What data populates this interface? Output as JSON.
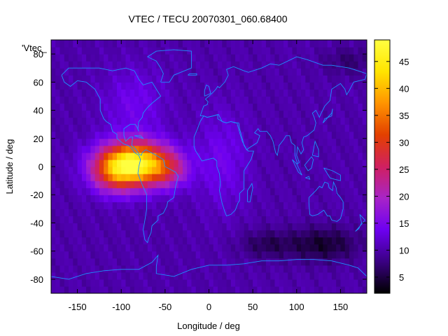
{
  "chart_data": {
    "type": "heatmap",
    "title": "VTEC / TECU 20070301_060.68400",
    "xlabel": "Longitude / deg",
    "ylabel": "Latitude / deg",
    "xlim": [
      -180,
      180
    ],
    "ylim": [
      -90,
      90
    ],
    "xticks": [
      -150,
      -100,
      -50,
      0,
      50,
      100,
      150
    ],
    "yticks": [
      -80,
      -60,
      -40,
      -20,
      0,
      20,
      40,
      60,
      80
    ],
    "xtick_labels": [
      "-150",
      "-100",
      "-50",
      "0",
      "50",
      "100",
      "150"
    ],
    "ytick_labels": [
      "-80",
      "-60",
      "-40",
      "-20",
      "0",
      "20",
      "40",
      "60",
      "80"
    ],
    "grid_deg": 5,
    "background_vtec": 10,
    "anomalies": [
      {
        "lon": -85,
        "lat": 2,
        "sigma_lon": 38,
        "sigma_lat": 15,
        "amp": 38
      },
      {
        "lon": -110,
        "lat": -5,
        "sigma_lon": 25,
        "sigma_lat": 14,
        "amp": 10
      },
      {
        "lon": -45,
        "lat": -2,
        "sigma_lon": 22,
        "sigma_lat": 12,
        "amp": 8
      },
      {
        "lon": -85,
        "lat": 45,
        "sigma_lon": 35,
        "sigma_lat": 25,
        "amp": 4
      },
      {
        "lon": 15,
        "lat": 5,
        "sigma_lon": 30,
        "sigma_lat": 35,
        "amp": 4
      },
      {
        "lon": 130,
        "lat": -55,
        "sigma_lon": 40,
        "sigma_lat": 12,
        "amp": -6
      },
      {
        "lon": 65,
        "lat": -55,
        "sigma_lon": 30,
        "sigma_lat": 10,
        "amp": -4
      },
      {
        "lon": 160,
        "lat": 75,
        "sigma_lon": 30,
        "sigma_lat": 10,
        "amp": -3
      }
    ],
    "colorbar": {
      "min": 2,
      "max": 49,
      "ticks": [
        5,
        10,
        15,
        20,
        25,
        30,
        35,
        40,
        45
      ],
      "tick_labels": [
        "5",
        "10",
        "15",
        "20",
        "25",
        "30",
        "35",
        "40",
        "45"
      ]
    },
    "legend_text": "'Vtec_",
    "coastline_color": "#1e90ff",
    "colormap": [
      "#000000",
      "#3a0082",
      "#6d00f0",
      "#a824c8",
      "#d02060",
      "#e34000",
      "#ff9400",
      "#ffe400",
      "#ffff40"
    ],
    "coastlines": [
      [
        [
          -168,
          65
        ],
        [
          -160,
          70
        ],
        [
          -140,
          70
        ],
        [
          -125,
          70
        ],
        [
          -110,
          68
        ],
        [
          -95,
          70
        ],
        [
          -85,
          68
        ],
        [
          -80,
          62
        ],
        [
          -75,
          58
        ],
        [
          -65,
          60
        ],
        [
          -60,
          55
        ],
        [
          -55,
          50
        ],
        [
          -65,
          45
        ],
        [
          -70,
          42
        ],
        [
          -75,
          38
        ],
        [
          -76,
          35
        ],
        [
          -80,
          32
        ],
        [
          -81,
          27
        ],
        [
          -80,
          25
        ],
        [
          -82,
          28
        ],
        [
          -84,
          30
        ],
        [
          -90,
          30
        ],
        [
          -97,
          27
        ],
        [
          -97,
          22
        ],
        [
          -95,
          18
        ],
        [
          -90,
          21
        ],
        [
          -87,
          21
        ],
        [
          -88,
          15
        ],
        [
          -83,
          12
        ],
        [
          -80,
          9
        ],
        [
          -77,
          8
        ],
        [
          -76,
          10
        ],
        [
          -72,
          12
        ],
        [
          -66,
          10
        ],
        [
          -60,
          8
        ],
        [
          -52,
          5
        ],
        [
          -50,
          0
        ],
        [
          -44,
          -2
        ],
        [
          -38,
          -4
        ],
        [
          -35,
          -7
        ],
        [
          -38,
          -14
        ],
        [
          -40,
          -22
        ],
        [
          -47,
          -25
        ],
        [
          -48,
          -28
        ],
        [
          -52,
          -33
        ],
        [
          -58,
          -35
        ],
        [
          -58,
          -38
        ],
        [
          -65,
          -42
        ],
        [
          -66,
          -47
        ],
        [
          -69,
          -51
        ],
        [
          -70,
          -54
        ],
        [
          -73,
          -52
        ],
        [
          -75,
          -45
        ],
        [
          -73,
          -38
        ],
        [
          -71,
          -30
        ],
        [
          -71,
          -20
        ],
        [
          -76,
          -13
        ],
        [
          -81,
          -5
        ],
        [
          -80,
          0
        ],
        [
          -78,
          5
        ],
        [
          -80,
          8
        ],
        [
          -85,
          10
        ],
        [
          -88,
          13
        ],
        [
          -92,
          15
        ],
        [
          -97,
          16
        ],
        [
          -105,
          20
        ],
        [
          -105,
          23
        ],
        [
          -110,
          25
        ],
        [
          -112,
          30
        ],
        [
          -117,
          32
        ],
        [
          -120,
          34
        ],
        [
          -124,
          40
        ],
        [
          -124,
          48
        ],
        [
          -130,
          55
        ],
        [
          -140,
          60
        ],
        [
          -150,
          61
        ],
        [
          -158,
          57
        ],
        [
          -165,
          60
        ],
        [
          -168,
          65
        ]
      ],
      [
        [
          -55,
          60
        ],
        [
          -45,
          60
        ],
        [
          -40,
          65
        ],
        [
          -20,
          70
        ],
        [
          -20,
          76
        ],
        [
          -20,
          82
        ],
        [
          -40,
          83
        ],
        [
          -60,
          82
        ],
        [
          -70,
          78
        ],
        [
          -60,
          75
        ],
        [
          -55,
          70
        ],
        [
          -52,
          66
        ],
        [
          -55,
          60
        ]
      ],
      [
        [
          -10,
          36
        ],
        [
          -6,
          43
        ],
        [
          -2,
          44
        ],
        [
          -1,
          46
        ],
        [
          -4,
          48
        ],
        [
          0,
          50
        ],
        [
          5,
          53
        ],
        [
          8,
          55
        ],
        [
          10,
          57
        ],
        [
          12,
          56
        ],
        [
          18,
          60
        ],
        [
          22,
          65
        ],
        [
          20,
          69
        ],
        [
          28,
          71
        ],
        [
          40,
          68
        ],
        [
          45,
          67
        ],
        [
          60,
          70
        ],
        [
          70,
          73
        ],
        [
          80,
          72
        ],
        [
          100,
          78
        ],
        [
          112,
          76
        ],
        [
          130,
          72
        ],
        [
          140,
          72
        ],
        [
          160,
          70
        ],
        [
          170,
          68
        ],
        [
          180,
          66
        ],
        [
          178,
          62
        ],
        [
          165,
          60
        ],
        [
          160,
          54
        ],
        [
          157,
          51
        ],
        [
          155,
          55
        ],
        [
          150,
          59
        ],
        [
          140,
          55
        ],
        [
          138,
          47
        ],
        [
          132,
          43
        ],
        [
          128,
          38
        ],
        [
          126,
          35
        ],
        [
          122,
          40
        ],
        [
          118,
          38
        ],
        [
          120,
          35
        ],
        [
          122,
          31
        ],
        [
          120,
          26
        ],
        [
          112,
          22
        ],
        [
          108,
          21
        ],
        [
          106,
          17
        ],
        [
          108,
          12
        ],
        [
          105,
          9
        ],
        [
          101,
          14
        ],
        [
          100,
          8
        ],
        [
          103,
          3
        ],
        [
          101,
          2
        ],
        [
          98,
          8
        ],
        [
          98,
          15
        ],
        [
          94,
          17
        ],
        [
          92,
          22
        ],
        [
          88,
          22
        ],
        [
          85,
          19
        ],
        [
          80,
          15
        ],
        [
          78,
          8
        ],
        [
          76,
          10
        ],
        [
          73,
          18
        ],
        [
          70,
          22
        ],
        [
          66,
          25
        ],
        [
          58,
          25
        ],
        [
          56,
          27
        ],
        [
          52,
          24
        ],
        [
          58,
          22
        ],
        [
          55,
          17
        ],
        [
          45,
          13
        ],
        [
          43,
          12
        ],
        [
          40,
          15
        ],
        [
          38,
          20
        ],
        [
          35,
          27
        ],
        [
          34,
          31
        ],
        [
          30,
          31
        ],
        [
          25,
          32
        ],
        [
          20,
          31
        ],
        [
          15,
          32
        ],
        [
          10,
          34
        ],
        [
          10,
          37
        ],
        [
          5,
          36
        ],
        [
          -2,
          35
        ],
        [
          -6,
          36
        ],
        [
          -10,
          36
        ]
      ],
      [
        [
          -17,
          21
        ],
        [
          -17,
          14
        ],
        [
          -15,
          11
        ],
        [
          -12,
          8
        ],
        [
          -8,
          4
        ],
        [
          -2,
          5
        ],
        [
          5,
          6
        ],
        [
          9,
          4
        ],
        [
          9,
          0
        ],
        [
          12,
          -5
        ],
        [
          13,
          -12
        ],
        [
          12,
          -17
        ],
        [
          15,
          -26
        ],
        [
          18,
          -32
        ],
        [
          20,
          -35
        ],
        [
          25,
          -34
        ],
        [
          30,
          -31
        ],
        [
          33,
          -26
        ],
        [
          35,
          -24
        ],
        [
          35,
          -19
        ],
        [
          40,
          -16
        ],
        [
          40,
          -10
        ],
        [
          40,
          -3
        ],
        [
          43,
          0
        ],
        [
          48,
          5
        ],
        [
          51,
          11
        ],
        [
          45,
          11
        ],
        [
          43,
          12
        ],
        [
          38,
          18
        ],
        [
          36,
          22
        ],
        [
          32,
          31
        ],
        [
          25,
          32
        ],
        [
          20,
          31
        ],
        [
          15,
          32
        ],
        [
          11,
          37
        ],
        [
          5,
          36
        ],
        [
          -2,
          35
        ],
        [
          -6,
          36
        ],
        [
          -10,
          32
        ],
        [
          -13,
          27
        ],
        [
          -17,
          21
        ]
      ],
      [
        [
          114,
          -22
        ],
        [
          114,
          -26
        ],
        [
          115,
          -34
        ],
        [
          118,
          -35
        ],
        [
          124,
          -34
        ],
        [
          131,
          -31
        ],
        [
          135,
          -35
        ],
        [
          138,
          -35
        ],
        [
          140,
          -38
        ],
        [
          146,
          -39
        ],
        [
          150,
          -37
        ],
        [
          153,
          -30
        ],
        [
          153,
          -25
        ],
        [
          150,
          -22
        ],
        [
          146,
          -19
        ],
        [
          145,
          -15
        ],
        [
          142,
          -11
        ],
        [
          141,
          -17
        ],
        [
          137,
          -15
        ],
        [
          136,
          -12
        ],
        [
          132,
          -11
        ],
        [
          129,
          -15
        ],
        [
          126,
          -14
        ],
        [
          122,
          -17
        ],
        [
          114,
          -22
        ]
      ],
      [
        [
          44,
          -25
        ],
        [
          47,
          -25
        ],
        [
          50,
          -15
        ],
        [
          49,
          -12
        ],
        [
          44,
          -17
        ],
        [
          44,
          -25
        ]
      ],
      [
        [
          -180,
          -78
        ],
        [
          -160,
          -80
        ],
        [
          -140,
          -76
        ],
        [
          -120,
          -74
        ],
        [
          -100,
          -73
        ],
        [
          -80,
          -73
        ],
        [
          -65,
          -68
        ],
        [
          -58,
          -63
        ],
        [
          -60,
          -71
        ],
        [
          -60,
          -76
        ],
        [
          -40,
          -78
        ],
        [
          -20,
          -73
        ],
        [
          0,
          -70
        ],
        [
          20,
          -70
        ],
        [
          40,
          -69
        ],
        [
          60,
          -67
        ],
        [
          80,
          -67
        ],
        [
          100,
          -66
        ],
        [
          120,
          -66
        ],
        [
          140,
          -67
        ],
        [
          160,
          -70
        ],
        [
          170,
          -72
        ],
        [
          180,
          -78
        ]
      ],
      [
        [
          -5,
          50
        ],
        [
          -5,
          54
        ],
        [
          -3,
          58
        ],
        [
          0,
          57
        ],
        [
          2,
          52
        ],
        [
          -5,
          50
        ]
      ],
      [
        [
          130,
          31
        ],
        [
          132,
          34
        ],
        [
          136,
          35
        ],
        [
          140,
          36
        ],
        [
          141,
          41
        ],
        [
          140,
          38
        ],
        [
          137,
          36
        ],
        [
          133,
          33
        ],
        [
          130,
          31
        ]
      ],
      [
        [
          95,
          5
        ],
        [
          100,
          2
        ],
        [
          106,
          -6
        ],
        [
          102,
          -4
        ],
        [
          95,
          5
        ]
      ],
      [
        [
          110,
          -8
        ],
        [
          115,
          -9
        ],
        [
          114,
          -7
        ],
        [
          110,
          -8
        ]
      ],
      [
        [
          109,
          1
        ],
        [
          117,
          7
        ],
        [
          119,
          5
        ],
        [
          117,
          -1
        ],
        [
          113,
          -3
        ],
        [
          109,
          1
        ]
      ],
      [
        [
          131,
          -1
        ],
        [
          141,
          -3
        ],
        [
          150,
          -6
        ],
        [
          150,
          -10
        ],
        [
          143,
          -9
        ],
        [
          138,
          -8
        ],
        [
          131,
          -1
        ]
      ],
      [
        [
          172,
          -34
        ],
        [
          178,
          -38
        ],
        [
          174,
          -41
        ],
        [
          167,
          -46
        ],
        [
          171,
          -44
        ],
        [
          174,
          -40
        ],
        [
          172,
          -34
        ]
      ],
      [
        [
          -24,
          65
        ],
        [
          -14,
          65
        ],
        [
          -14,
          66
        ],
        [
          -22,
          66
        ],
        [
          -24,
          65
        ]
      ],
      [
        [
          118,
          8
        ],
        [
          121,
          18
        ],
        [
          125,
          12
        ],
        [
          125,
          7
        ],
        [
          118,
          8
        ]
      ],
      [
        [
          -85,
          22
        ],
        [
          -75,
          20
        ],
        [
          -78,
          22
        ],
        [
          -85,
          22
        ]
      ]
    ]
  }
}
